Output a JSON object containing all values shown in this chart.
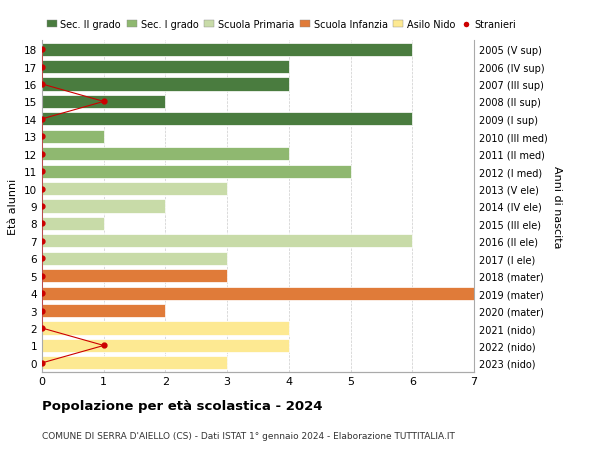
{
  "ages": [
    0,
    1,
    2,
    3,
    4,
    5,
    6,
    7,
    8,
    9,
    10,
    11,
    12,
    13,
    14,
    15,
    16,
    17,
    18
  ],
  "years_labels": [
    "2023 (nido)",
    "2022 (nido)",
    "2021 (nido)",
    "2020 (mater)",
    "2019 (mater)",
    "2018 (mater)",
    "2017 (I ele)",
    "2016 (II ele)",
    "2015 (III ele)",
    "2014 (IV ele)",
    "2013 (V ele)",
    "2012 (I med)",
    "2011 (II med)",
    "2010 (III med)",
    "2009 (I sup)",
    "2008 (II sup)",
    "2007 (III sup)",
    "2006 (IV sup)",
    "2005 (V sup)"
  ],
  "bar_values": [
    3,
    4,
    4,
    2,
    7,
    3,
    3,
    6,
    1,
    2,
    3,
    5,
    4,
    1,
    6,
    2,
    4,
    4,
    6
  ],
  "bar_colors": [
    "#fde992",
    "#fde992",
    "#fde992",
    "#e07b39",
    "#e07b39",
    "#e07b39",
    "#c8dba8",
    "#c8dba8",
    "#c8dba8",
    "#c8dba8",
    "#c8dba8",
    "#8fb870",
    "#8fb870",
    "#8fb870",
    "#4a7c3f",
    "#4a7c3f",
    "#4a7c3f",
    "#4a7c3f",
    "#4a7c3f"
  ],
  "stranieri_values": [
    0,
    1,
    0,
    0,
    0,
    0,
    0,
    0,
    0,
    0,
    0,
    0,
    0,
    0,
    0,
    1,
    0,
    0,
    0
  ],
  "legend_labels": [
    "Sec. II grado",
    "Sec. I grado",
    "Scuola Primaria",
    "Scuola Infanzia",
    "Asilo Nido",
    "Stranieri"
  ],
  "legend_colors": [
    "#4a7c3f",
    "#8fb870",
    "#c8dba8",
    "#e07b39",
    "#fde992",
    "#cc0000"
  ],
  "title": "Popolazione per età scolastica - 2024",
  "subtitle": "COMUNE DI SERRA D'AIELLO (CS) - Dati ISTAT 1° gennaio 2024 - Elaborazione TUTTITALIA.IT",
  "ylabel": "Età alunni",
  "ylabel_right": "Anni di nascita",
  "xlim": [
    0,
    7
  ],
  "xticks": [
    0,
    1,
    2,
    3,
    4,
    5,
    6,
    7
  ],
  "bg_color": "#ffffff",
  "bar_edge_color": "#ffffff",
  "grid_color": "#cccccc"
}
